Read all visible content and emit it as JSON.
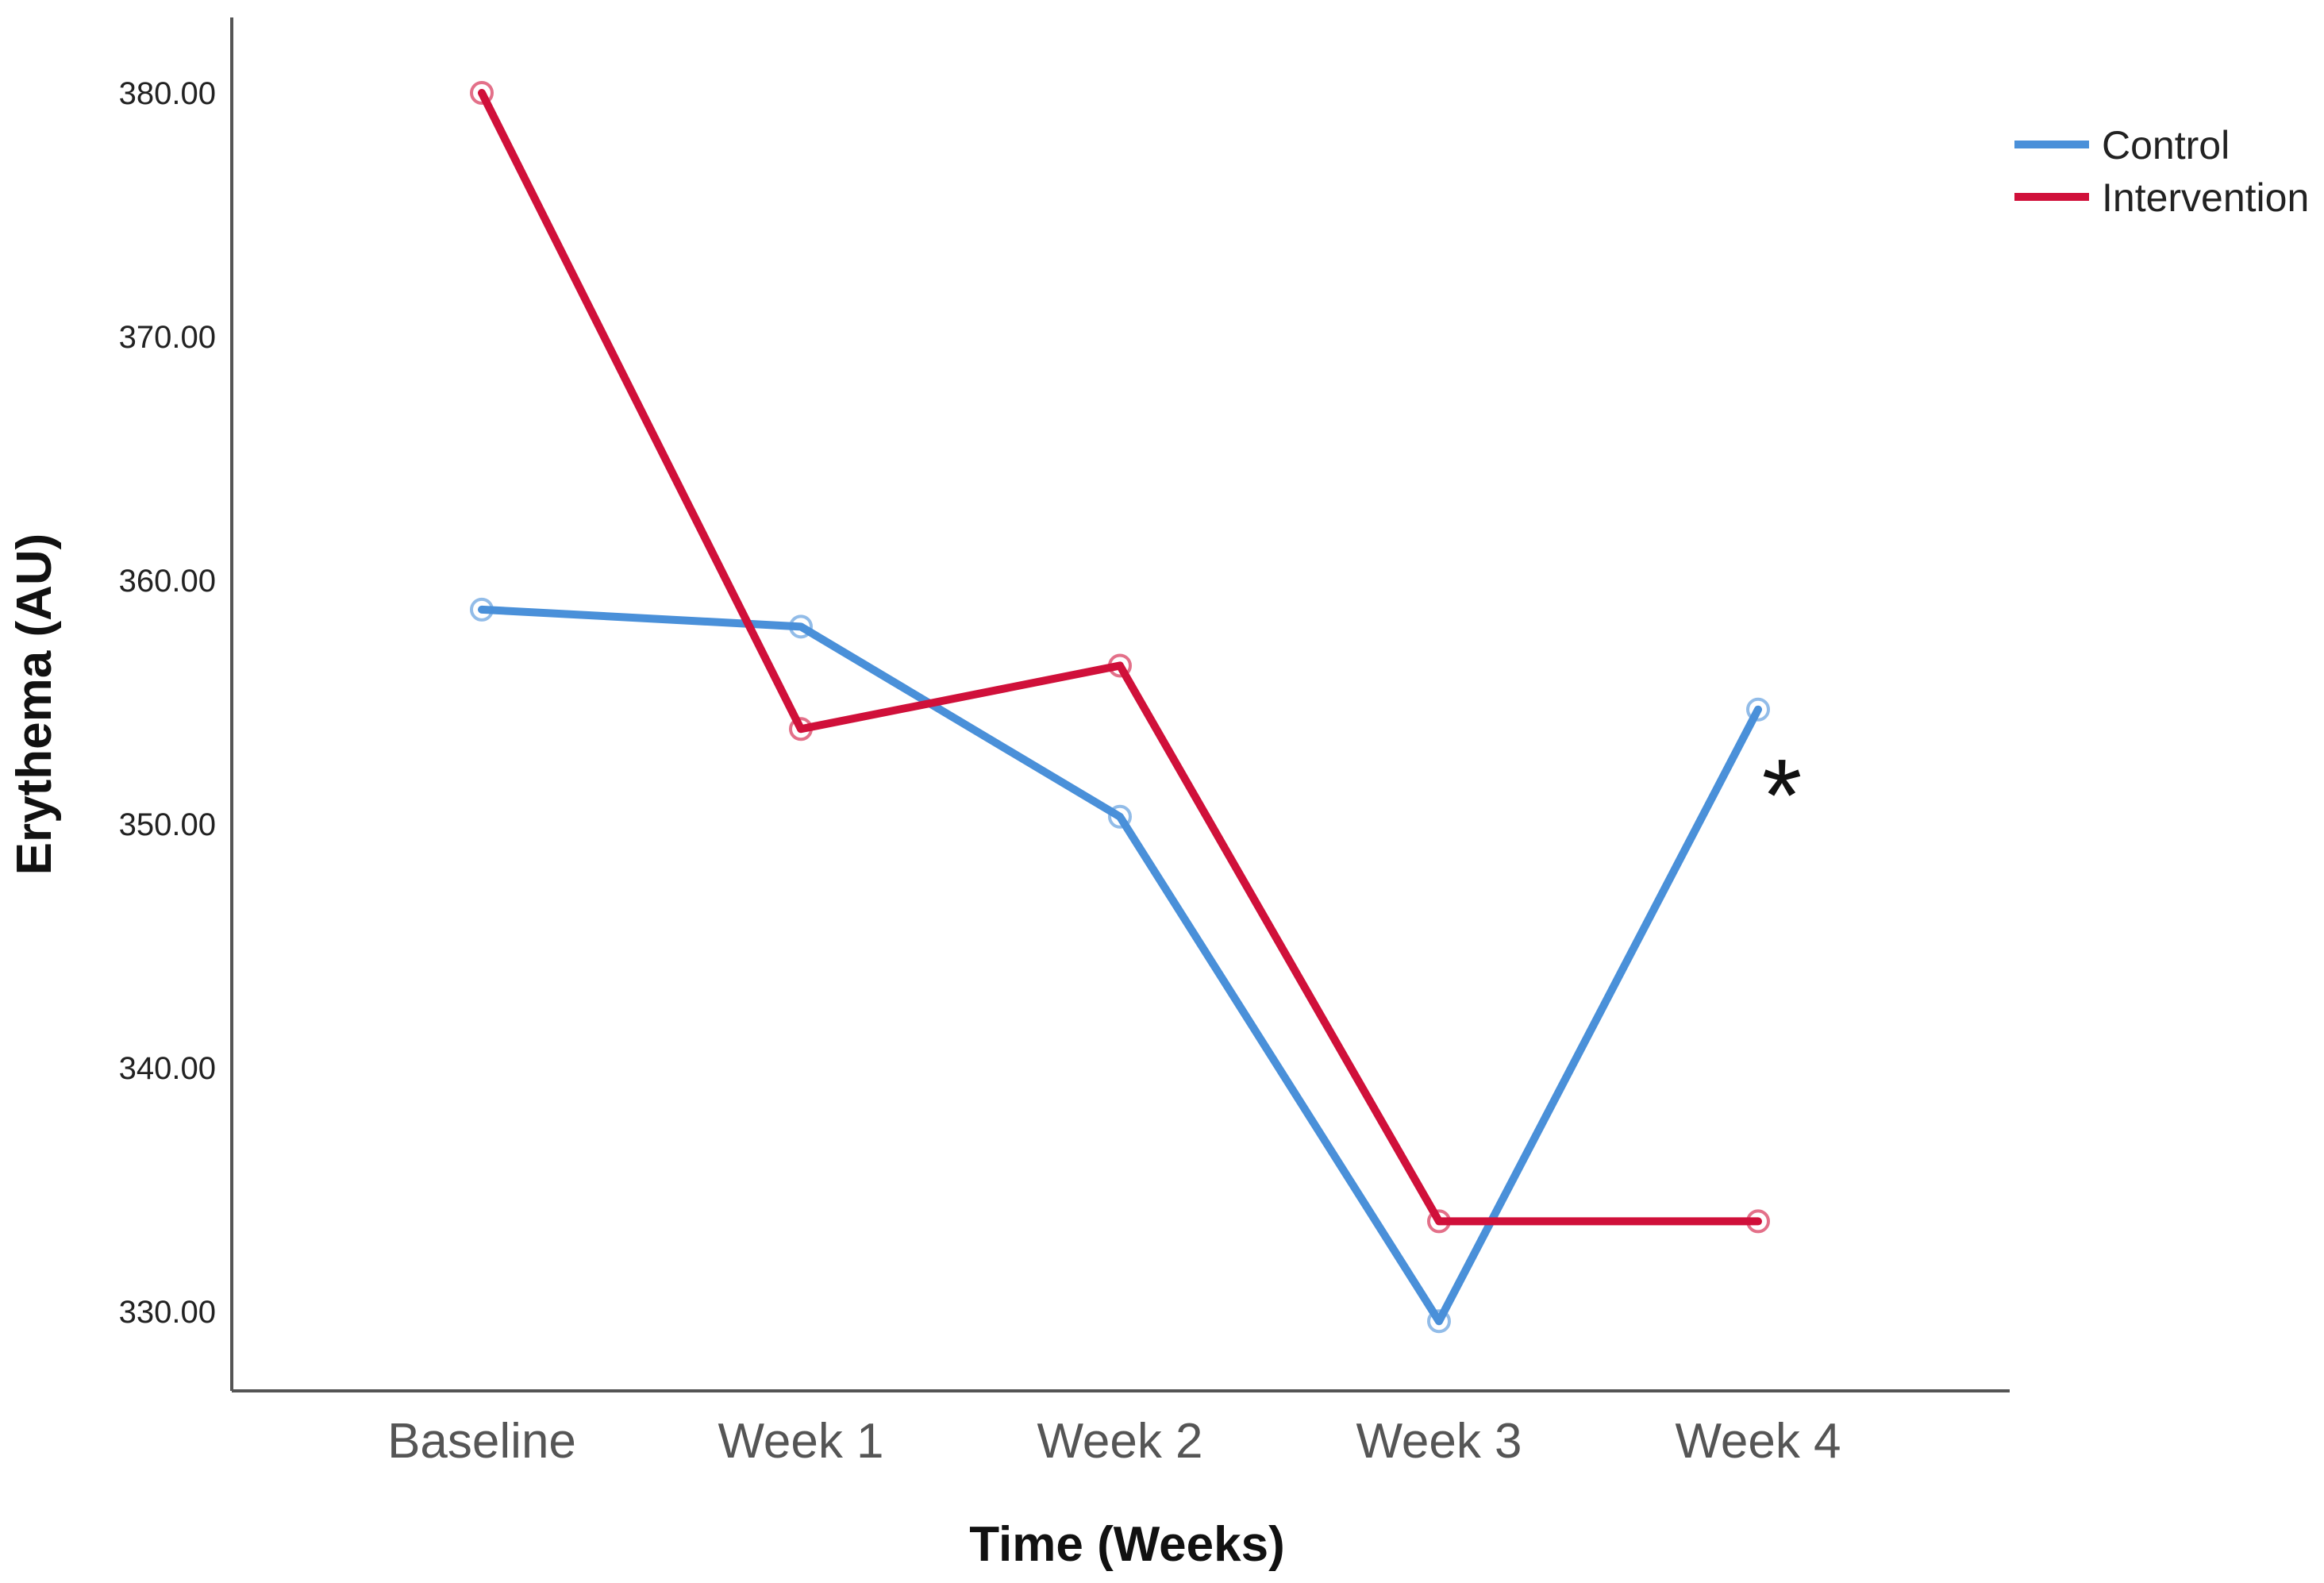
{
  "chart_data": {
    "type": "line",
    "title": "",
    "xlabel": "Time (Weeks)",
    "ylabel": "Erythema (AU)",
    "categories": [
      "Baseline",
      "Week 1",
      "Week 2",
      "Week 3",
      "Week 4"
    ],
    "yticks": [
      330,
      340,
      350,
      360,
      370,
      380
    ],
    "ytick_labels": [
      "330.00",
      "340.00",
      "350.00",
      "360.00",
      "370.00",
      "380.00"
    ],
    "ylim": [
      327,
      383
    ],
    "grid": false,
    "legend_position": "top-right",
    "series": [
      {
        "name": "Control",
        "color": "#4a90d9",
        "values": [
          358.8,
          358.1,
          350.3,
          329.6,
          354.7
        ]
      },
      {
        "name": "Intervention",
        "color": "#d0103a",
        "values": [
          380.0,
          353.9,
          356.5,
          333.7,
          333.7
        ]
      }
    ],
    "annotations": [
      {
        "text": "*",
        "category": "Week 4",
        "y": 352.0
      }
    ]
  }
}
